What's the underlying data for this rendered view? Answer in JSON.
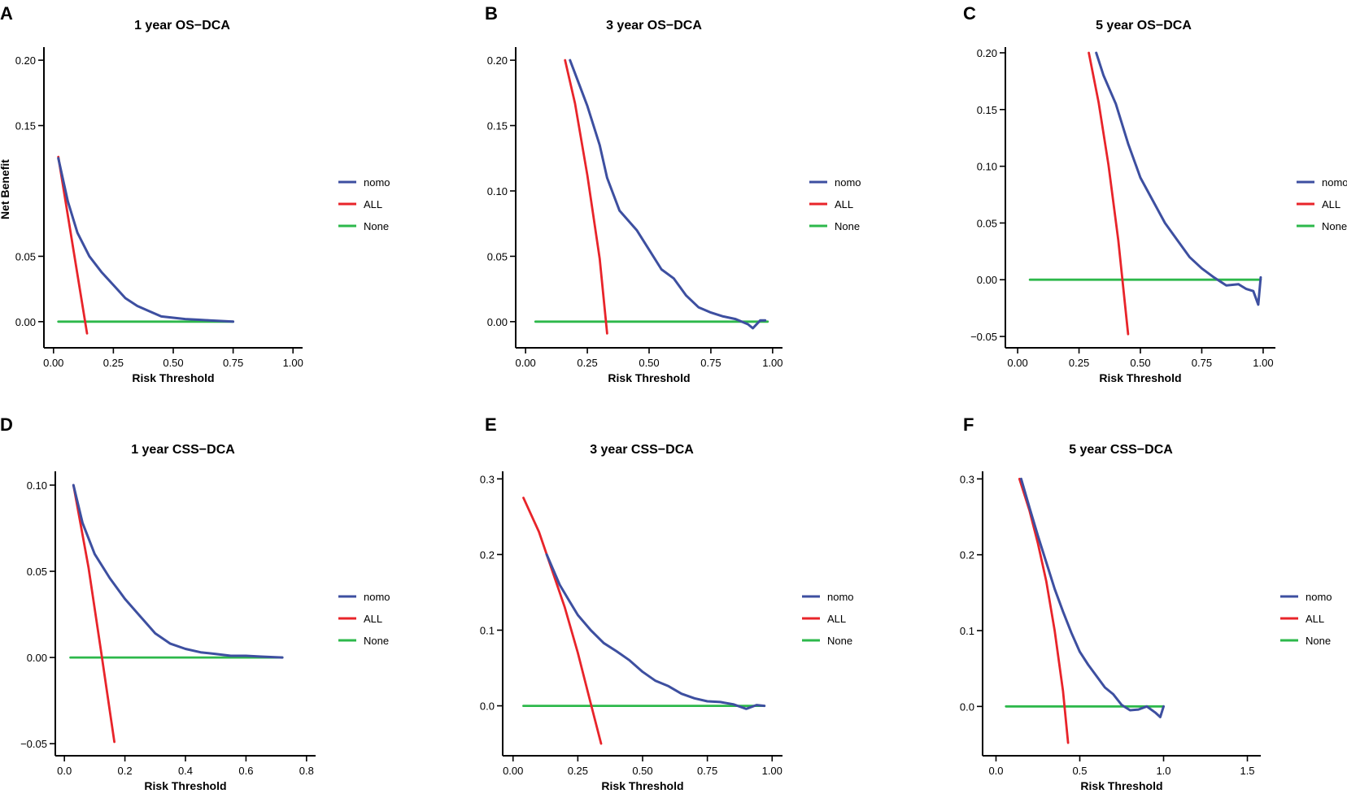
{
  "figure": {
    "colors": {
      "nomo": "#3d4fa0",
      "ALL": "#e8242a",
      "None": "#2db84b"
    }
  },
  "chart_data": [
    {
      "panel": "A",
      "type": "line",
      "title": "1 year OS−DCA",
      "xlabel": "Risk Threshold",
      "ylabel": "Net Benefit",
      "xlim": [
        -0.04,
        1.04
      ],
      "ylim": [
        -0.02,
        0.21
      ],
      "xticks": [
        0,
        0.25,
        0.5,
        0.75,
        1.0
      ],
      "xtick_labels": [
        "0.00",
        "0.25",
        "0.50",
        "0.75",
        "1.00"
      ],
      "yticks": [
        0,
        0.05,
        0.15,
        0.2
      ],
      "ytick_labels": [
        "0.00",
        "0.05",
        "0.15",
        "0.20"
      ],
      "legend": [
        "nomo",
        "ALL",
        "None"
      ],
      "series": [
        {
          "name": "nomo",
          "x": [
            0.02,
            0.06,
            0.1,
            0.15,
            0.2,
            0.25,
            0.3,
            0.35,
            0.4,
            0.45,
            0.5,
            0.55,
            0.6,
            0.65,
            0.7,
            0.75
          ],
          "y": [
            0.125,
            0.092,
            0.068,
            0.05,
            0.038,
            0.028,
            0.018,
            0.012,
            0.008,
            0.004,
            0.003,
            0.002,
            0.0015,
            0.001,
            0.0005,
            0.0
          ]
        },
        {
          "name": "ALL",
          "x": [
            0.02,
            0.14
          ],
          "y": [
            0.126,
            -0.009
          ]
        },
        {
          "name": "None",
          "x": [
            0.02,
            0.75
          ],
          "y": [
            0,
            0
          ]
        }
      ]
    },
    {
      "panel": "B",
      "type": "line",
      "title": "3 year OS−DCA",
      "xlabel": "Risk Threshold",
      "ylabel": "",
      "xlim": [
        -0.04,
        1.04
      ],
      "ylim": [
        -0.02,
        0.21
      ],
      "xticks": [
        0,
        0.25,
        0.5,
        0.75,
        1.0
      ],
      "xtick_labels": [
        "0.00",
        "0.25",
        "0.50",
        "0.75",
        "1.00"
      ],
      "yticks": [
        0,
        0.05,
        0.1,
        0.15,
        0.2
      ],
      "ytick_labels": [
        "0.00",
        "0.05",
        "0.10",
        "0.15",
        "0.20"
      ],
      "legend": [
        "nomo",
        "ALL",
        "None"
      ],
      "series": [
        {
          "name": "nomo",
          "x": [
            0.18,
            0.2,
            0.25,
            0.3,
            0.33,
            0.38,
            0.45,
            0.5,
            0.55,
            0.6,
            0.65,
            0.7,
            0.75,
            0.8,
            0.85,
            0.9,
            0.92,
            0.95,
            0.97
          ],
          "y": [
            0.2,
            0.19,
            0.165,
            0.135,
            0.11,
            0.085,
            0.07,
            0.055,
            0.04,
            0.033,
            0.02,
            0.011,
            0.007,
            0.004,
            0.002,
            -0.002,
            -0.005,
            0.001,
            0.001
          ]
        },
        {
          "name": "ALL",
          "x": [
            0.16,
            0.2,
            0.25,
            0.3,
            0.33
          ],
          "y": [
            0.2,
            0.167,
            0.112,
            0.048,
            -0.009
          ]
        },
        {
          "name": "None",
          "x": [
            0.04,
            0.98
          ],
          "y": [
            0,
            0
          ]
        }
      ]
    },
    {
      "panel": "C",
      "type": "line",
      "title": "5 year OS−DCA",
      "xlabel": "Risk Threshold",
      "ylabel": "",
      "xlim": [
        -0.05,
        1.05
      ],
      "ylim": [
        -0.06,
        0.205
      ],
      "xticks": [
        0,
        0.25,
        0.5,
        0.75,
        1.0
      ],
      "xtick_labels": [
        "0.00",
        "0.25",
        "0.50",
        "0.75",
        "1.00"
      ],
      "yticks": [
        -0.05,
        0,
        0.05,
        0.1,
        0.15,
        0.2
      ],
      "ytick_labels": [
        "−0.05",
        "0.00",
        "0.05",
        "0.10",
        "0.15",
        "0.20"
      ],
      "legend": [
        "nomo",
        "ALL",
        "None"
      ],
      "series": [
        {
          "name": "nomo",
          "x": [
            0.32,
            0.35,
            0.4,
            0.45,
            0.5,
            0.55,
            0.6,
            0.65,
            0.7,
            0.75,
            0.8,
            0.85,
            0.9,
            0.93,
            0.96,
            0.98,
            0.99
          ],
          "y": [
            0.2,
            0.18,
            0.155,
            0.12,
            0.09,
            0.07,
            0.05,
            0.035,
            0.02,
            0.01,
            0.002,
            -0.005,
            -0.004,
            -0.008,
            -0.01,
            -0.022,
            0.002
          ]
        },
        {
          "name": "ALL",
          "x": [
            0.29,
            0.33,
            0.37,
            0.41,
            0.45
          ],
          "y": [
            0.2,
            0.156,
            0.101,
            0.035,
            -0.048
          ]
        },
        {
          "name": "None",
          "x": [
            0.05,
            0.99
          ],
          "y": [
            0,
            0
          ]
        }
      ]
    },
    {
      "panel": "D",
      "type": "line",
      "title": "1 year CSS−DCA",
      "xlabel": "Risk Threshold",
      "ylabel": "",
      "xlim": [
        -0.03,
        0.83
      ],
      "ylim": [
        -0.057,
        0.108
      ],
      "xticks": [
        0,
        0.2,
        0.4,
        0.6,
        0.8
      ],
      "xtick_labels": [
        "0.0",
        "0.2",
        "0.4",
        "0.6",
        "0.8"
      ],
      "yticks": [
        -0.05,
        0,
        0.05,
        0.1
      ],
      "ytick_labels": [
        "−0.05",
        "0.00",
        "0.05",
        "0.10"
      ],
      "legend": [
        "nomo",
        "ALL",
        "None"
      ],
      "series": [
        {
          "name": "nomo",
          "x": [
            0.03,
            0.06,
            0.1,
            0.15,
            0.2,
            0.25,
            0.3,
            0.35,
            0.4,
            0.45,
            0.5,
            0.55,
            0.6,
            0.65,
            0.72
          ],
          "y": [
            0.1,
            0.078,
            0.06,
            0.046,
            0.034,
            0.024,
            0.014,
            0.008,
            0.005,
            0.003,
            0.002,
            0.001,
            0.001,
            0.0005,
            0.0
          ]
        },
        {
          "name": "ALL",
          "x": [
            0.03,
            0.08,
            0.12,
            0.165
          ],
          "y": [
            0.1,
            0.052,
            0.005,
            -0.049
          ]
        },
        {
          "name": "None",
          "x": [
            0.02,
            0.72
          ],
          "y": [
            0,
            0
          ]
        }
      ]
    },
    {
      "panel": "E",
      "type": "line",
      "title": "3 year CSS−DCA",
      "xlabel": "Risk Threshold",
      "ylabel": "",
      "xlim": [
        -0.04,
        1.04
      ],
      "ylim": [
        -0.066,
        0.31
      ],
      "xticks": [
        0,
        0.25,
        0.5,
        0.75,
        1.0
      ],
      "xtick_labels": [
        "0.00",
        "0.25",
        "0.50",
        "0.75",
        "1.00"
      ],
      "yticks": [
        0,
        0.1,
        0.2,
        0.3
      ],
      "ytick_labels": [
        "0.0",
        "0.1",
        "0.2",
        "0.3"
      ],
      "legend": [
        "nomo",
        "ALL",
        "None"
      ],
      "series": [
        {
          "name": "nomo",
          "x": [
            0.13,
            0.18,
            0.22,
            0.25,
            0.3,
            0.35,
            0.4,
            0.45,
            0.5,
            0.55,
            0.6,
            0.65,
            0.7,
            0.75,
            0.8,
            0.85,
            0.9,
            0.94,
            0.97
          ],
          "y": [
            0.2,
            0.16,
            0.137,
            0.12,
            0.1,
            0.083,
            0.072,
            0.06,
            0.045,
            0.033,
            0.026,
            0.016,
            0.01,
            0.006,
            0.005,
            0.002,
            -0.004,
            0.001,
            0.0
          ]
        },
        {
          "name": "ALL",
          "x": [
            0.04,
            0.1,
            0.15,
            0.2,
            0.25,
            0.3,
            0.34
          ],
          "y": [
            0.275,
            0.23,
            0.18,
            0.13,
            0.07,
            0.003,
            -0.05
          ]
        },
        {
          "name": "None",
          "x": [
            0.04,
            0.97
          ],
          "y": [
            0,
            0
          ]
        }
      ]
    },
    {
      "panel": "F",
      "type": "line",
      "title": "5 year CSS−DCA",
      "xlabel": "Risk Threshold",
      "ylabel": "",
      "xlim": [
        -0.08,
        1.58
      ],
      "ylim": [
        -0.065,
        0.31
      ],
      "xticks": [
        0,
        0.5,
        1.0,
        1.5
      ],
      "xtick_labels": [
        "0.0",
        "0.5",
        "1.0",
        "1.5"
      ],
      "yticks": [
        0,
        0.1,
        0.2,
        0.3
      ],
      "ytick_labels": [
        "0.0",
        "0.1",
        "0.2",
        "0.3"
      ],
      "legend": [
        "nomo",
        "ALL",
        "None"
      ],
      "series": [
        {
          "name": "nomo",
          "x": [
            0.15,
            0.2,
            0.25,
            0.3,
            0.35,
            0.4,
            0.45,
            0.5,
            0.55,
            0.6,
            0.65,
            0.7,
            0.75,
            0.8,
            0.85,
            0.9,
            0.95,
            0.98,
            1.0
          ],
          "y": [
            0.3,
            0.262,
            0.225,
            0.19,
            0.155,
            0.125,
            0.097,
            0.072,
            0.055,
            0.04,
            0.025,
            0.016,
            0.002,
            -0.005,
            -0.004,
            0.0,
            -0.008,
            -0.014,
            0.0
          ]
        },
        {
          "name": "ALL",
          "x": [
            0.14,
            0.2,
            0.25,
            0.3,
            0.35,
            0.4,
            0.43
          ],
          "y": [
            0.3,
            0.258,
            0.215,
            0.165,
            0.1,
            0.02,
            -0.048
          ]
        },
        {
          "name": "None",
          "x": [
            0.06,
            1.0
          ],
          "y": [
            0,
            0
          ]
        }
      ]
    }
  ]
}
